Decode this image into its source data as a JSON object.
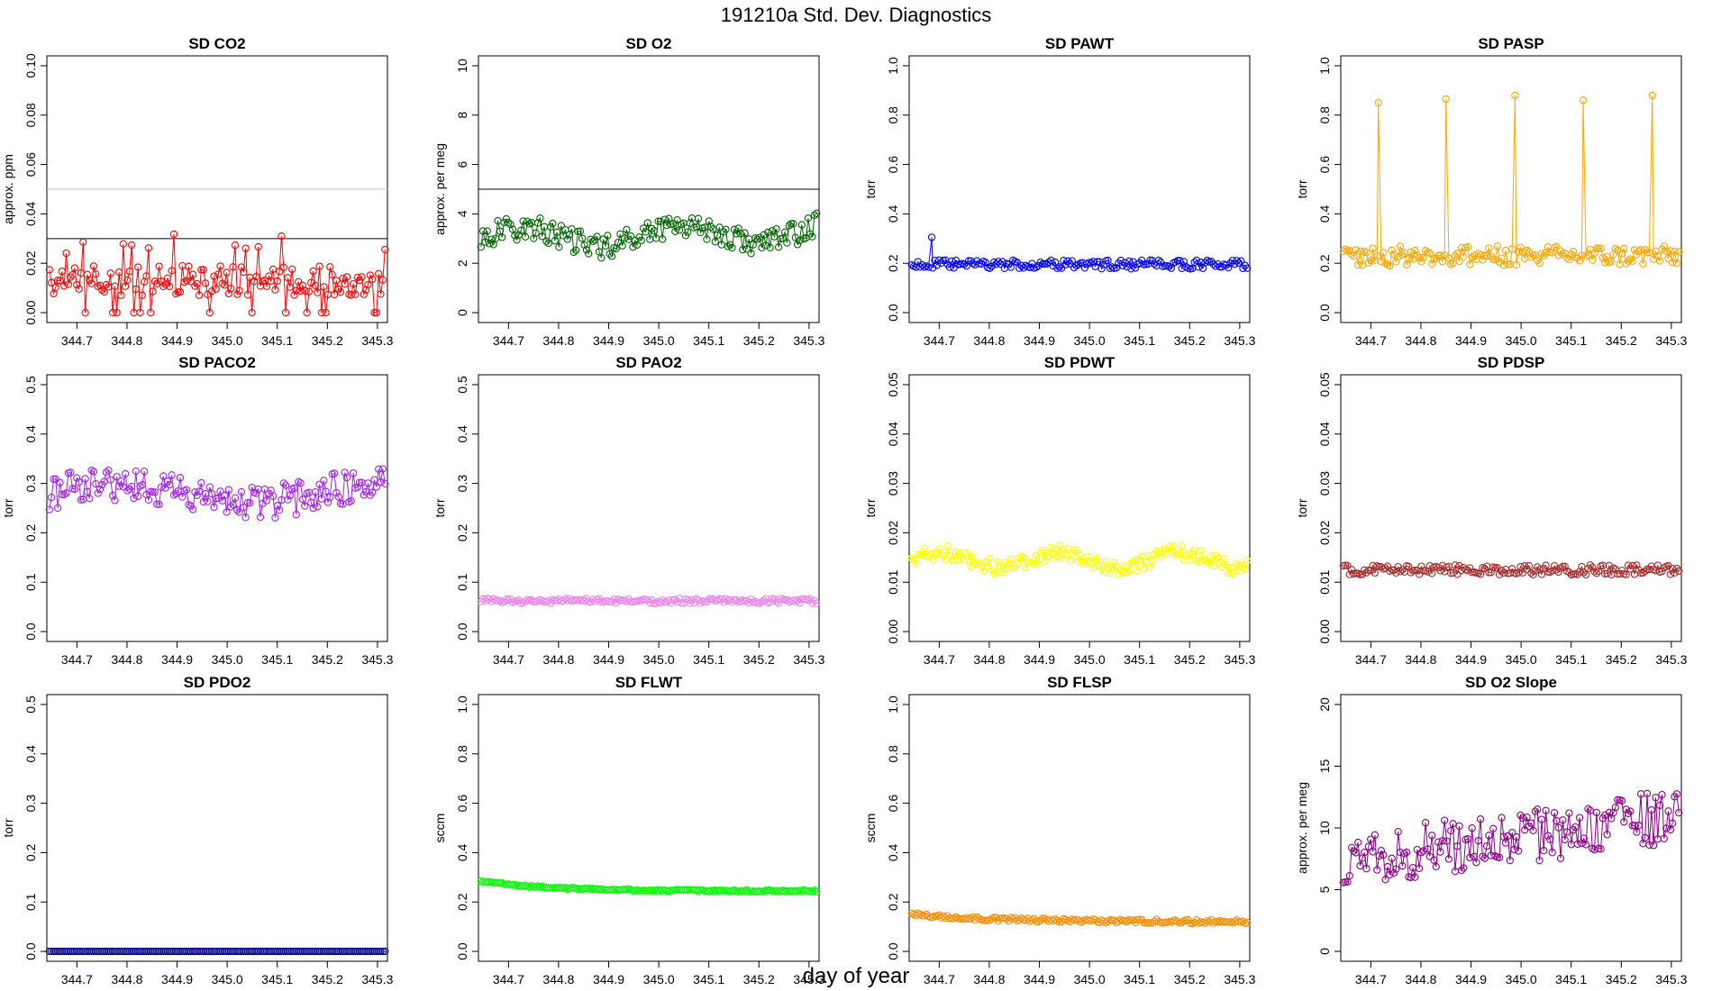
{
  "figure": {
    "title": "191210a   Std. Dev. Diagnostics",
    "xlabel": "day of year"
  },
  "chart_data": [
    {
      "type": "line",
      "title": "SD CO2",
      "ylabel": "approx. ppm",
      "color": "#ff0000",
      "xlim": [
        344.64,
        345.32
      ],
      "ylim": [
        0,
        0.1
      ],
      "yticks": [
        "0.00",
        "0.02",
        "0.04",
        "0.06",
        "0.08",
        "0.10"
      ],
      "xticks": [
        "344.7",
        "344.8",
        "344.9",
        "345.0",
        "345.1",
        "345.2",
        "345.3"
      ],
      "hlines": [
        {
          "y": 0.03,
          "color": "#000000"
        },
        {
          "y": 0.05,
          "color": "#c8c8c8"
        }
      ],
      "base": 0.014,
      "noise": 0.006,
      "gen": "co2"
    },
    {
      "type": "line",
      "title": "SD O2",
      "ylabel": "approx. per meg",
      "color": "#006400",
      "xlim": [
        344.64,
        345.32
      ],
      "ylim": [
        0,
        10
      ],
      "yticks": [
        "0",
        "2",
        "4",
        "6",
        "8",
        "10"
      ],
      "xticks": [
        "344.7",
        "344.8",
        "344.9",
        "345.0",
        "345.1",
        "345.2",
        "345.3"
      ],
      "hlines": [
        {
          "y": 5,
          "color": "#000000"
        }
      ],
      "base": 3.2,
      "noise": 0.5,
      "gen": "o2"
    },
    {
      "type": "line",
      "title": "SD PAWT",
      "ylabel": "torr",
      "color": "#0000ff",
      "xlim": [
        344.64,
        345.32
      ],
      "ylim": [
        0,
        1
      ],
      "yticks": [
        "0.0",
        "0.2",
        "0.4",
        "0.6",
        "0.8",
        "1.0"
      ],
      "xticks": [
        "344.7",
        "344.8",
        "344.9",
        "345.0",
        "345.1",
        "345.2",
        "345.3"
      ],
      "hlines": [],
      "base": 0.195,
      "noise": 0.018,
      "gen": "flat",
      "spike": {
        "x": 344.685,
        "y": 0.305
      }
    },
    {
      "type": "line",
      "title": "SD PASP",
      "ylabel": "torr",
      "color": "#ffa500",
      "xlim": [
        344.64,
        345.32
      ],
      "ylim": [
        0,
        1
      ],
      "yticks": [
        "0.0",
        "0.2",
        "0.4",
        "0.6",
        "0.8",
        "1.0"
      ],
      "xticks": [
        "344.7",
        "344.8",
        "344.9",
        "345.0",
        "345.1",
        "345.2",
        "345.3"
      ],
      "hlines": [],
      "base": 0.23,
      "noise": 0.04,
      "gen": "pasp",
      "peaks": [
        {
          "x": 344.715,
          "y": 0.85
        },
        {
          "x": 344.85,
          "y": 0.865
        },
        {
          "x": 344.988,
          "y": 0.88
        },
        {
          "x": 345.124,
          "y": 0.86
        },
        {
          "x": 345.262,
          "y": 0.88
        }
      ]
    },
    {
      "type": "line",
      "title": "SD PACO2",
      "ylabel": "torr",
      "color": "#a020f0",
      "xlim": [
        344.64,
        345.32
      ],
      "ylim": [
        0,
        0.5
      ],
      "yticks": [
        "0.0",
        "0.1",
        "0.2",
        "0.3",
        "0.4",
        "0.5"
      ],
      "xticks": [
        "344.7",
        "344.8",
        "344.9",
        "345.0",
        "345.1",
        "345.2",
        "345.3"
      ],
      "hlines": [],
      "base": 0.285,
      "noise": 0.03,
      "gen": "paco2"
    },
    {
      "type": "line",
      "title": "SD PAO2",
      "ylabel": "torr",
      "color": "#ee82ee",
      "xlim": [
        344.64,
        345.32
      ],
      "ylim": [
        0,
        0.5
      ],
      "yticks": [
        "0.0",
        "0.1",
        "0.2",
        "0.3",
        "0.4",
        "0.5"
      ],
      "xticks": [
        "344.7",
        "344.8",
        "344.9",
        "345.0",
        "345.1",
        "345.2",
        "345.3"
      ],
      "hlines": [],
      "base": 0.062,
      "noise": 0.005,
      "gen": "flat"
    },
    {
      "type": "line",
      "title": "SD PDWT",
      "ylabel": "torr",
      "color": "#ffff00",
      "xlim": [
        344.64,
        345.32
      ],
      "ylim": [
        0,
        0.05
      ],
      "yticks": [
        "0.00",
        "0.01",
        "0.02",
        "0.03",
        "0.04",
        "0.05"
      ],
      "xticks": [
        "344.7",
        "344.8",
        "344.9",
        "345.0",
        "345.1",
        "345.2",
        "345.3"
      ],
      "hlines": [],
      "base": 0.0145,
      "noise": 0.0015,
      "gen": "pdwt"
    },
    {
      "type": "line",
      "title": "SD PDSP",
      "ylabel": "torr",
      "color": "#a52a2a",
      "xlim": [
        344.64,
        345.32
      ],
      "ylim": [
        0,
        0.05
      ],
      "yticks": [
        "0.00",
        "0.01",
        "0.02",
        "0.03",
        "0.04",
        "0.05"
      ],
      "xticks": [
        "344.7",
        "344.8",
        "344.9",
        "345.0",
        "345.1",
        "345.2",
        "345.3"
      ],
      "hlines": [],
      "base": 0.0125,
      "noise": 0.001,
      "gen": "flat"
    },
    {
      "type": "line",
      "title": "SD PDO2",
      "ylabel": "torr",
      "color": "#00008b",
      "xlim": [
        344.64,
        345.32
      ],
      "ylim": [
        0,
        0.5
      ],
      "yticks": [
        "0.0",
        "0.1",
        "0.2",
        "0.3",
        "0.4",
        "0.5"
      ],
      "xticks": [
        "344.7",
        "344.8",
        "344.9",
        "345.0",
        "345.1",
        "345.2",
        "345.3"
      ],
      "hlines": [],
      "base": 0.0,
      "noise": 0.0,
      "gen": "flat"
    },
    {
      "type": "line",
      "title": "SD FLWT",
      "ylabel": "sccm",
      "color": "#00ff00",
      "xlim": [
        344.64,
        345.32
      ],
      "ylim": [
        0,
        1
      ],
      "yticks": [
        "0.0",
        "0.2",
        "0.4",
        "0.6",
        "0.8",
        "1.0"
      ],
      "xticks": [
        "344.7",
        "344.8",
        "344.9",
        "345.0",
        "345.1",
        "345.2",
        "345.3"
      ],
      "hlines": [],
      "base": 0.245,
      "noise": 0.006,
      "gen": "flwt"
    },
    {
      "type": "line",
      "title": "SD FLSP",
      "ylabel": "sccm",
      "color": "#ff8c00",
      "xlim": [
        344.64,
        345.32
      ],
      "ylim": [
        0,
        1
      ],
      "yticks": [
        "0.0",
        "0.2",
        "0.4",
        "0.6",
        "0.8",
        "1.0"
      ],
      "xticks": [
        "344.7",
        "344.8",
        "344.9",
        "345.0",
        "345.1",
        "345.2",
        "345.3"
      ],
      "hlines": [],
      "base": 0.125,
      "noise": 0.01,
      "gen": "flsp"
    },
    {
      "type": "line",
      "title": "SD O2 Slope",
      "ylabel": "approx. per meg",
      "color": "#8b008b",
      "xlim": [
        344.64,
        345.32
      ],
      "ylim": [
        0,
        20
      ],
      "yticks": [
        "0",
        "5",
        "10",
        "15",
        "20"
      ],
      "xticks": [
        "344.7",
        "344.8",
        "344.9",
        "345.0",
        "345.1",
        "345.2",
        "345.3"
      ],
      "hlines": [],
      "base": 8.5,
      "noise": 1.5,
      "gen": "slope"
    }
  ]
}
